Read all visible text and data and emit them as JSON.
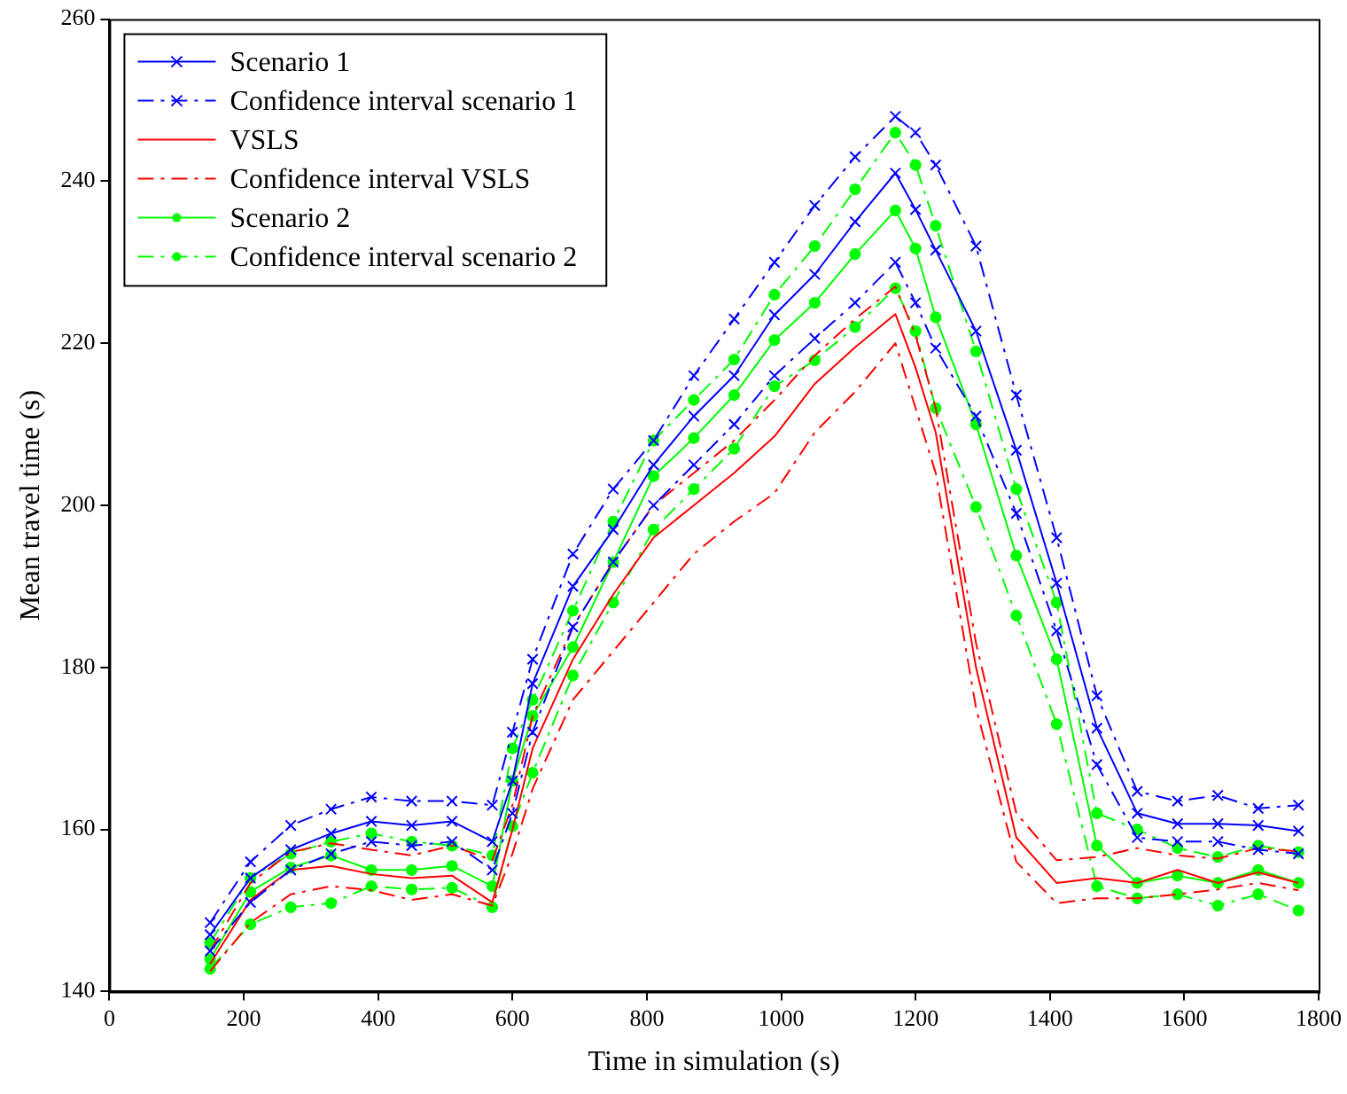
{
  "chart_data": {
    "type": "line",
    "xlabel": "Time in simulation (s)",
    "ylabel": "Mean travel time (s)",
    "x": [
      150,
      210,
      270,
      330,
      390,
      450,
      510,
      570,
      600,
      630,
      690,
      750,
      810,
      870,
      930,
      990,
      1050,
      1110,
      1170,
      1200,
      1230,
      1290,
      1350,
      1410,
      1470,
      1530,
      1590,
      1650,
      1710,
      1770
    ],
    "xlim": [
      0,
      1800
    ],
    "xticks": [
      0,
      200,
      400,
      600,
      800,
      1000,
      1200,
      1400,
      1600,
      1800
    ],
    "ylim": [
      140,
      260
    ],
    "yticks": [
      140,
      160,
      180,
      200,
      220,
      240,
      260
    ],
    "legend": "top left",
    "series": [
      {
        "name": "Scenario 1",
        "color": "#0000ff",
        "marker": "cross",
        "line_style": "solid",
        "values": [
          147,
          154,
          157.5,
          159.5,
          161,
          160.5,
          161,
          158.5,
          166,
          178,
          190,
          197,
          205,
          211,
          216,
          223.5,
          228.5,
          235,
          241,
          236.5,
          231.5,
          221.5,
          206.8,
          190.4,
          172.5,
          162,
          160.7,
          160.7,
          160.5,
          159.8
        ]
      },
      {
        "name": "Confidence interval scenario 1",
        "color": "#0000ff",
        "marker": "cross",
        "line_style": "dashed",
        "values": [
          148.5,
          156,
          160.5,
          162.5,
          164,
          163.5,
          163.5,
          163,
          172,
          181,
          194,
          202,
          208,
          216,
          223,
          230,
          237,
          243,
          248,
          246,
          242,
          232,
          213.6,
          196,
          176.5,
          164.7,
          163.5,
          164.2,
          162.6,
          163
        ]
      },
      {
        "color": "#0000ff",
        "marker": "cross",
        "line_style": "dashed",
        "values": [
          145,
          151,
          155,
          157,
          158.5,
          158,
          158.5,
          155,
          162,
          172,
          185,
          193,
          200,
          205,
          210,
          216,
          220.6,
          225,
          230,
          225,
          219.4,
          211,
          199,
          184.5,
          168,
          159,
          158.5,
          158.5,
          157.5,
          157
        ]
      },
      {
        "name": "VSLS",
        "color": "#ff0000",
        "marker": "none",
        "line_style": "solid",
        "values": [
          143.4,
          151.3,
          155,
          155.5,
          154.5,
          154,
          154.3,
          151,
          160,
          170,
          181,
          189,
          196,
          200,
          204,
          208.5,
          215,
          219.5,
          223.6,
          217,
          209,
          180,
          159,
          153.4,
          154,
          153.4,
          155,
          153.4,
          154.7,
          153.4
        ]
      },
      {
        "name": "Confidence interval VSLS",
        "color": "#ff0000",
        "marker": "none",
        "line_style": "dashed",
        "values": [
          145,
          153.4,
          157.2,
          158.3,
          157.5,
          156.8,
          158,
          156.2,
          163,
          174,
          185,
          193,
          200,
          204,
          208,
          213,
          218.5,
          223,
          227,
          221,
          212,
          183,
          162,
          156.2,
          156.6,
          157.7,
          156.8,
          156.4,
          157.7,
          157.3
        ]
      },
      {
        "color": "#ff0000",
        "marker": "none",
        "line_style": "dashed",
        "values": [
          142.5,
          148.5,
          152,
          153,
          152.5,
          151.3,
          152,
          150.6,
          157,
          165,
          176,
          182,
          188,
          194,
          198,
          201.5,
          209,
          214,
          220,
          212,
          204,
          175,
          156,
          150.9,
          151.5,
          151.5,
          152,
          152.6,
          153.4,
          152.5
        ]
      },
      {
        "name": "Scenario 2",
        "color": "#00ff00",
        "marker": "circle",
        "line_style": "solid",
        "values": [
          144,
          152.3,
          155.3,
          156.8,
          155,
          155,
          155.5,
          153,
          166,
          174,
          182.5,
          193,
          203.6,
          208.3,
          213.6,
          220.4,
          225,
          231,
          236.4,
          231.7,
          223.2,
          210,
          193.8,
          181,
          158,
          153.4,
          154.3,
          153.4,
          155,
          153.4
        ]
      },
      {
        "name": "Confidence interval scenario 2",
        "color": "#00ff00",
        "marker": "circle",
        "line_style": "dashed",
        "values": [
          146,
          154,
          157,
          158.5,
          159.5,
          158.5,
          158,
          156.8,
          170,
          176,
          187,
          198,
          208,
          213,
          218,
          226,
          232,
          239,
          246,
          242,
          234.5,
          219,
          202,
          188,
          162,
          160,
          157.7,
          156.6,
          158,
          157.2
        ]
      },
      {
        "color": "#00ff00",
        "marker": "circle",
        "line_style": "dashed",
        "values": [
          142.8,
          148.3,
          150.4,
          150.9,
          153,
          152.6,
          152.8,
          150.4,
          160.4,
          167,
          179,
          188,
          197,
          202,
          207,
          214.7,
          217.9,
          222,
          226.8,
          221.5,
          212,
          199.8,
          186.4,
          173,
          153,
          151.5,
          152,
          150.6,
          152,
          150
        ]
      }
    ]
  }
}
